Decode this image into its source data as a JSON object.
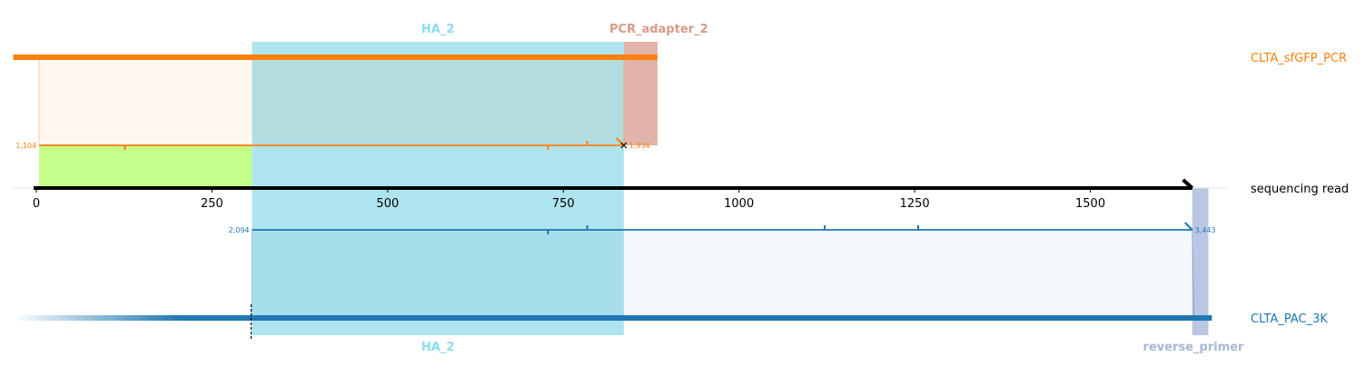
{
  "axis": {
    "ticks": [
      "0",
      "250",
      "500",
      "750",
      "1000",
      "1250",
      "1500"
    ],
    "min": 0,
    "max": 1645
  },
  "read": {
    "label": "sequencing read",
    "length": 1645,
    "color": "#000000"
  },
  "features": {
    "top": [
      {
        "label": "HA_2",
        "start": 307,
        "end": 836,
        "color": "#aee4ef",
        "label_color": "#8fdcec"
      },
      {
        "label": "PCR_adapter_2",
        "start": 836,
        "end": 884,
        "color": "#e2b3a8",
        "label_color": "#d99a88"
      }
    ],
    "bottom": [
      {
        "label": "HA_2",
        "start": 307,
        "end": 836,
        "color": "#aee4ef",
        "label_color": "#8fdcec"
      },
      {
        "label": "reverse_primer",
        "start": 1645,
        "end": 1668,
        "color": "#b4c0e0",
        "label_color": "#a8b6d6"
      }
    ]
  },
  "references": [
    {
      "name": "CLTA_sfGFP_PCR",
      "color": "#ff7f0e",
      "ref_start_label": "1,104",
      "ref_end_label": "1,934",
      "ref_start": 1104,
      "ref_end": 1934,
      "read_start": 4,
      "read_end": 836,
      "bar_start": -33,
      "bar_end": 884,
      "mismatch_read_positions": [
        126,
        728
      ],
      "insertion_read_positions": [
        784
      ],
      "unaligned_highlight": {
        "start": 4,
        "end": 307,
        "color": "#c5ff8c"
      }
    },
    {
      "name": "CLTA_PAC_3K",
      "color": "#1f77b4",
      "ref_start_label": "2,094",
      "ref_end_label": "3,443",
      "ref_start": 2094,
      "ref_end": 3443,
      "read_start": 307,
      "read_end": 1645,
      "bar_start": -33,
      "bar_end": 1673,
      "mismatch_read_positions": [
        728
      ],
      "insertion_read_positions": [
        784,
        1122,
        1255
      ],
      "cut_site": 307
    }
  ]
}
